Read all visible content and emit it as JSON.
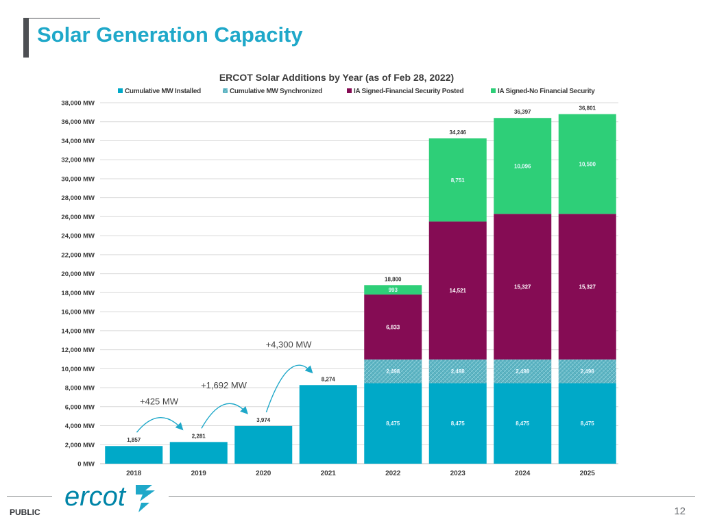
{
  "slide": {
    "title": "Solar Generation Capacity",
    "footer_label": "PUBLIC",
    "page_number": "12",
    "logo_text": "ercot"
  },
  "colors": {
    "installed": "#00a9c8",
    "synchronized": "#5db5c4",
    "posted": "#850c54",
    "no_security": "#2ecf78",
    "title": "#1fa8c9",
    "axis_text": "#3a3a3a",
    "arrow": "#1fa8c9"
  },
  "chart_data": {
    "type": "bar",
    "stacked": true,
    "title": "ERCOT Solar Additions by Year (as of Feb 28, 2022)",
    "categories": [
      "2018",
      "2019",
      "2020",
      "2021",
      "2022",
      "2023",
      "2024",
      "2025"
    ],
    "series": [
      {
        "name": "Cumulative MW Installed",
        "key": "installed",
        "values": [
          1857,
          2281,
          3974,
          8274,
          8475,
          8475,
          8475,
          8475
        ]
      },
      {
        "name": "Cumulative MW Synchronized",
        "key": "synchronized",
        "values": [
          0,
          0,
          0,
          0,
          2498,
          2498,
          2498,
          2498
        ]
      },
      {
        "name": "IA Signed-Financial Security Posted",
        "key": "posted",
        "values": [
          0,
          0,
          0,
          0,
          6833,
          14521,
          15327,
          15327
        ]
      },
      {
        "name": "IA Signed-No Financial Security",
        "key": "no_security",
        "values": [
          0,
          0,
          0,
          0,
          993,
          8751,
          10096,
          10500
        ]
      }
    ],
    "totals": [
      1857,
      2281,
      3974,
      8274,
      18800,
      34246,
      36397,
      36801
    ],
    "segment_labels": {
      "installed": [
        "",
        "",
        "",
        "",
        "8,475",
        "8,475",
        "8,475",
        "8,475"
      ],
      "synchronized": [
        "",
        "",
        "",
        "",
        "2,498",
        "2,498",
        "2,498",
        "2,498"
      ],
      "posted": [
        "",
        "",
        "",
        "",
        "6,833",
        "14,521",
        "15,327",
        "15,327"
      ],
      "no_security": [
        "",
        "",
        "",
        "",
        "993",
        "8,751",
        "10,096",
        "10,500"
      ]
    },
    "total_labels": [
      "1,857",
      "2,281",
      "3,974",
      "8,274",
      "18,800",
      "34,246",
      "36,397",
      "36,801"
    ],
    "ylim": [
      0,
      38000
    ],
    "yticks": [
      0,
      2000,
      4000,
      6000,
      8000,
      10000,
      12000,
      14000,
      16000,
      18000,
      20000,
      22000,
      24000,
      26000,
      28000,
      30000,
      32000,
      34000,
      36000,
      38000
    ],
    "ytick_labels": [
      "0 MW",
      "2,000 MW",
      "4,000 MW",
      "6,000 MW",
      "8,000 MW",
      "10,000 MW",
      "12,000 MW",
      "14,000 MW",
      "16,000 MW",
      "18,000 MW",
      "20,000 MW",
      "22,000 MW",
      "24,000 MW",
      "26,000 MW",
      "28,000 MW",
      "30,000 MW",
      "32,000 MW",
      "34,000 MW",
      "36,000 MW",
      "38,000 MW"
    ],
    "grid": true,
    "legend_position": "top",
    "annotations": [
      {
        "text": "+425 MW",
        "from": "2018",
        "to": "2019"
      },
      {
        "text": "+1,692 MW",
        "from": "2019",
        "to": "2020"
      },
      {
        "text": "+4,300 MW",
        "from": "2020",
        "to": "2021"
      }
    ]
  }
}
